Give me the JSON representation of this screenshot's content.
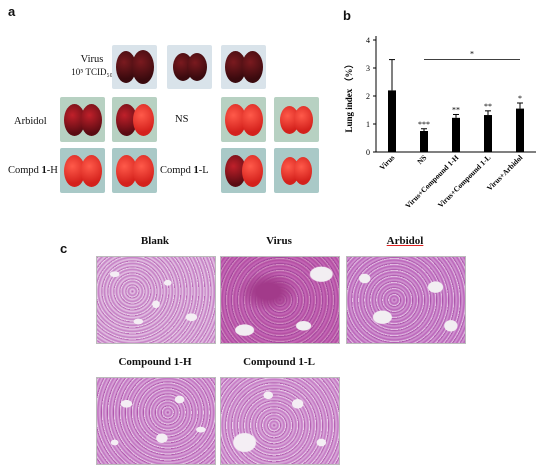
{
  "panel_a": {
    "letter": "a",
    "virus_label_line1": "Virus",
    "virus_label_line2": "10⁵ TCID₅₀",
    "arbidol_label": "Arbidol",
    "ns_label": "NS",
    "compd_h_prefix": "Compd ",
    "compd_h_bold": "1",
    "compd_h_suffix": "-H",
    "compd_l_prefix": "Compd ",
    "compd_l_bold": "1",
    "compd_l_suffix": "-L"
  },
  "panel_b": {
    "letter": "b",
    "significance_bracket_label": "*"
  },
  "panel_c": {
    "letter": "c",
    "titles": [
      "Blank",
      "Virus",
      "Arbidol",
      "Compound 1-H",
      "Compound 1-L"
    ]
  },
  "chart_data": {
    "type": "bar",
    "categories": [
      "Virus",
      "NS",
      "Virus+Compound 1-H",
      "Virus+Compound 1-L",
      "Virus+Arbidol"
    ],
    "values": [
      2.2,
      0.75,
      1.22,
      1.32,
      1.55
    ],
    "errors": [
      1.1,
      0.08,
      0.12,
      0.15,
      0.2
    ],
    "significance": [
      "",
      "***",
      "**",
      "**",
      "*"
    ],
    "ylabel": "Lung index （%）",
    "xlabel": "",
    "ylim": [
      0,
      4
    ],
    "yticks": [
      0,
      1,
      2,
      3,
      4
    ],
    "bar_color": "#000000",
    "grid": false
  }
}
